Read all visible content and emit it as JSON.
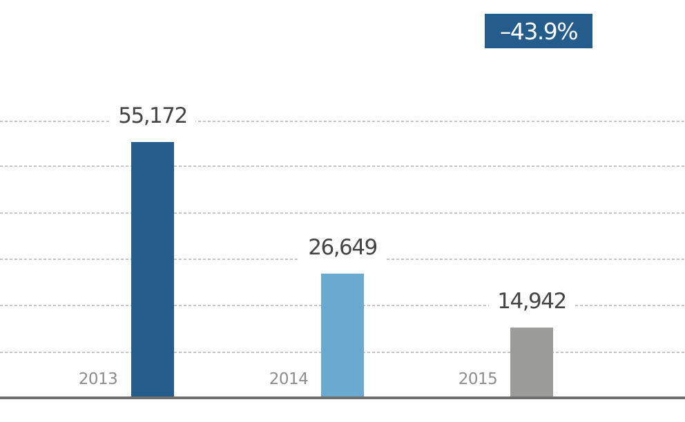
{
  "chart_data": {
    "type": "bar",
    "title": "",
    "xlabel": "",
    "ylabel": "",
    "categories": [
      "2013",
      "2014",
      "2015"
    ],
    "values": [
      55172,
      26649,
      14942
    ],
    "value_labels": [
      "55,172",
      "26,649",
      "14,942"
    ],
    "bar_colors": [
      "#245d8c",
      "#6aaad0",
      "#9b9b9a"
    ],
    "ylim": [
      0,
      60000
    ],
    "grid": true,
    "grid_style": "dashed"
  },
  "badge": {
    "text": "–43.9%",
    "color": "#245d8c"
  },
  "colors": {
    "axis": "#707070",
    "grid": "#8a8a8a",
    "value_label": "#444444",
    "category_label": "#8c8c8c"
  }
}
